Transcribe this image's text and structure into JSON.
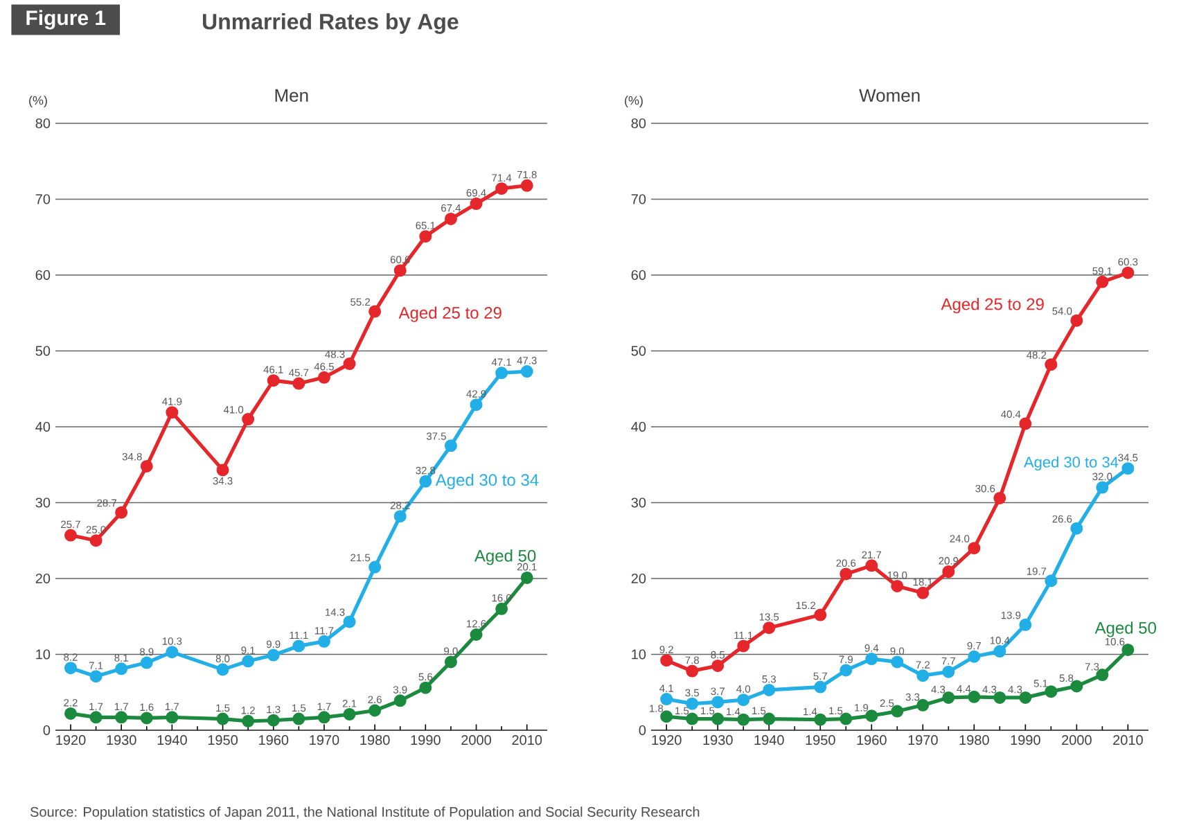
{
  "chart_data": [
    {
      "type": "line",
      "title": "Men",
      "ylabel": "(%)",
      "annotations": [
        "Figure 1",
        "Unmarried Rates by Age",
        "Source: Population statistics of Japan 2011, the National Institute of Population and Social Security Research"
      ],
      "x": [
        1920,
        1925,
        1930,
        1935,
        1940,
        1950,
        1955,
        1960,
        1965,
        1970,
        1975,
        1980,
        1985,
        1990,
        1995,
        2000,
        2005,
        2010
      ],
      "xlim": [
        1917,
        2014
      ],
      "xticks": [
        1920,
        1930,
        1940,
        1950,
        1960,
        1970,
        1980,
        1990,
        2000,
        2010
      ],
      "ylim": [
        0,
        80
      ],
      "yticks": [
        0,
        10,
        20,
        30,
        40,
        50,
        60,
        70,
        80
      ],
      "grid": "y",
      "marker": "circle",
      "line_style": "solid",
      "series": [
        {
          "name": "Aged 25 to 29",
          "color": "#e5262a",
          "values": [
            25.7,
            25.0,
            28.7,
            34.8,
            41.9,
            34.3,
            41.0,
            46.1,
            45.7,
            46.5,
            48.3,
            55.2,
            60.6,
            65.1,
            67.4,
            69.4,
            71.4,
            71.8
          ],
          "value_labels": [
            "25.7",
            "25.0",
            "28.7",
            "34.8",
            "41.9",
            "34.3",
            "41.0",
            "46.1",
            "45.7",
            "46.5",
            "48.3",
            "55.2",
            "60.6",
            "65.1",
            "67.4",
            "69.4",
            "71.4",
            "71.8"
          ]
        },
        {
          "name": "Aged 30 to 34",
          "color": "#22aee6",
          "values": [
            8.2,
            7.1,
            8.1,
            8.9,
            10.3,
            8.0,
            9.1,
            9.9,
            11.1,
            11.7,
            14.3,
            21.5,
            28.2,
            32.8,
            37.5,
            42.9,
            47.1,
            47.3
          ],
          "value_labels": [
            "8.2",
            "7.1",
            "8.1",
            "8.9",
            "10.3",
            "8.0",
            "9.1",
            "9.9",
            "11.1",
            "11.7",
            "14.3",
            "21.5",
            "28.2",
            "32.8",
            "37.5",
            "42.9",
            "47.1",
            "47.3"
          ]
        },
        {
          "name": "Aged 50",
          "color": "#1b8a3e",
          "values": [
            2.2,
            1.7,
            1.7,
            1.6,
            1.7,
            1.5,
            1.2,
            1.3,
            1.5,
            1.7,
            2.1,
            2.6,
            3.9,
            5.6,
            9.0,
            12.6,
            16.0,
            20.1
          ],
          "value_labels": [
            "2.2",
            "1.7",
            "1.7",
            "1.6",
            "1.7",
            "1.5",
            "1.2",
            "1.3",
            "1.5",
            "1.7",
            "2.1",
            "2.6",
            "3.9",
            "5.6",
            "9.0",
            "12.6",
            "16.0",
            "20.1"
          ]
        }
      ]
    },
    {
      "type": "line",
      "title": "Women",
      "ylabel": "(%)",
      "x": [
        1920,
        1925,
        1930,
        1935,
        1940,
        1950,
        1955,
        1960,
        1965,
        1970,
        1975,
        1980,
        1985,
        1990,
        1995,
        2000,
        2005,
        2010
      ],
      "xlim": [
        1917,
        2014
      ],
      "xticks": [
        1920,
        1930,
        1940,
        1950,
        1960,
        1970,
        1980,
        1990,
        2000,
        2010
      ],
      "ylim": [
        0,
        80
      ],
      "yticks": [
        0,
        10,
        20,
        30,
        40,
        50,
        60,
        70,
        80
      ],
      "grid": "y",
      "marker": "circle",
      "line_style": "solid",
      "series": [
        {
          "name": "Aged 25 to 29",
          "color": "#e5262a",
          "values": [
            9.2,
            7.8,
            8.5,
            11.1,
            13.5,
            15.2,
            20.6,
            21.7,
            19.0,
            18.1,
            20.9,
            24.0,
            30.6,
            40.4,
            48.2,
            54.0,
            59.1,
            60.3
          ],
          "value_labels": [
            "9.2",
            "7.8",
            "8.5",
            "11.1",
            "13.5",
            "15.2",
            "20.6",
            "21.7",
            "19.0",
            "18.1",
            "20.9",
            "24.0",
            "30.6",
            "40.4",
            "48.2",
            "54.0",
            "59.1",
            "60.3"
          ]
        },
        {
          "name": "Aged 30 to 34",
          "color": "#22aee6",
          "values": [
            4.1,
            3.5,
            3.7,
            4.0,
            5.3,
            5.7,
            7.9,
            9.4,
            9.0,
            7.2,
            7.7,
            9.7,
            10.4,
            13.9,
            19.7,
            26.6,
            32.0,
            34.5
          ],
          "value_labels": [
            "4.1",
            "3.5",
            "3.7",
            "4.0",
            "5.3",
            "5.7",
            "7.9",
            "9.4",
            "9.0",
            "7.2",
            "7.7",
            "9.7",
            "10.4",
            "13.9",
            "19.7",
            "26.6",
            "32.0",
            "34.5"
          ]
        },
        {
          "name": "Aged 50",
          "color": "#1b8a3e",
          "values": [
            1.8,
            1.5,
            1.5,
            1.4,
            1.5,
            1.4,
            1.5,
            1.9,
            2.5,
            3.3,
            4.3,
            4.4,
            4.3,
            4.3,
            5.1,
            5.8,
            7.3,
            10.6
          ],
          "value_labels": [
            "1.8",
            "1.5",
            "1.5",
            "1.4",
            "1.5",
            "1.4",
            "1.5",
            "1.9",
            "2.5",
            "3.3",
            "4.3",
            "4.4",
            "4.3",
            "4.3",
            "5.1",
            "5.8",
            "7.3",
            "10.6"
          ]
        }
      ]
    }
  ]
}
